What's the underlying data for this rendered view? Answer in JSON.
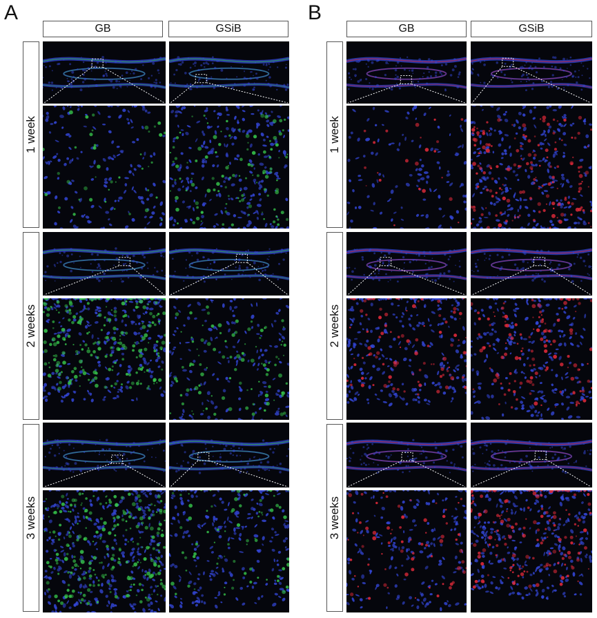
{
  "panels": [
    {
      "letter": "A",
      "stain": "green",
      "columns": [
        "GB",
        "GSiB"
      ],
      "rows": [
        "1 week",
        "2 weeks",
        "3 weeks"
      ]
    },
    {
      "letter": "B",
      "stain": "red",
      "columns": [
        "GB",
        "GSiB"
      ],
      "rows": [
        "1 week",
        "2 weeks",
        "3 weeks"
      ]
    }
  ],
  "colors": {
    "background": "#05060c",
    "nuclei": "#3346d6",
    "stain_green": "#36c24a",
    "stain_red": "#e22a3a",
    "zoom_lines": "#ffffff"
  }
}
